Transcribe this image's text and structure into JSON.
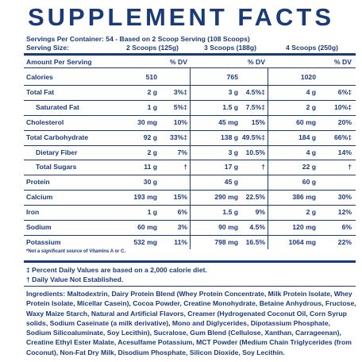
{
  "title": "SUPPLEMENT FACTS",
  "servings_per_container": "Servings Per Container: 54 - Based on 2 Scoop Serving (108 Scoops)",
  "serving_size": {
    "label": "Serving Size:",
    "columns": [
      "2 Scoops (125g)",
      "3 Scoops (188g)",
      "4 Scoops (250g)"
    ]
  },
  "header": {
    "label": "Amount Per Serving",
    "dv": "% DV"
  },
  "rows": [
    {
      "name": "Calories",
      "cols": [
        {
          "amount": "510"
        },
        {
          "amount": "765"
        },
        {
          "amount": "1020"
        }
      ]
    },
    {
      "name": "Total Fat",
      "cols": [
        {
          "amount": "2 g",
          "dv": "3%‡"
        },
        {
          "amount": "3 g",
          "dv": "4.5%‡"
        },
        {
          "amount": "4 g",
          "dv": "6%‡"
        }
      ]
    },
    {
      "name": "Saturated Fat",
      "cols": [
        {
          "amount": "1 g",
          "dv": "5%‡"
        },
        {
          "amount": "1.5 g",
          "dv": "7.5%‡"
        },
        {
          "amount": "2 g",
          "dv": "10%‡"
        }
      ]
    },
    {
      "name": "Cholesterol",
      "cols": [
        {
          "amount": "30 mg",
          "dv": "10%"
        },
        {
          "amount": "45 mg",
          "dv": "15%"
        },
        {
          "amount": "60 mg",
          "dv": "20%"
        }
      ]
    },
    {
      "name": "Total Carbohydrate",
      "cols": [
        {
          "amount": "92 g",
          "dv": "33%‡"
        },
        {
          "amount": "138 g",
          "dv": "49.5%‡"
        },
        {
          "amount": "184 g",
          "dv": "66%‡"
        }
      ]
    },
    {
      "name": "Dietary Fiber",
      "cols": [
        {
          "amount": "2 g",
          "dv": "7%"
        },
        {
          "amount": "3 g",
          "dv": "10.5%"
        },
        {
          "amount": "4 g",
          "dv": "14%"
        }
      ]
    },
    {
      "name": "Total Sugars",
      "cols": [
        {
          "amount": "11 g",
          "dv": "†"
        },
        {
          "amount": "17 g",
          "dv": "†"
        },
        {
          "amount": "22 g",
          "dv": "†"
        }
      ]
    },
    {
      "name": "Protein",
      "cols": [
        {
          "amount": "30 g"
        },
        {
          "amount": "45 g"
        },
        {
          "amount": "60 g"
        }
      ]
    },
    {
      "name": "Calcium",
      "cols": [
        {
          "amount": "193 mg",
          "dv": "15%"
        },
        {
          "amount": "290 mg",
          "dv": "22.5%"
        },
        {
          "amount": "386 mg",
          "dv": "30%"
        }
      ]
    },
    {
      "name": "Iron",
      "cols": [
        {
          "amount": "1 g",
          "dv": "6%"
        },
        {
          "amount": "1.5 g",
          "dv": "9%"
        },
        {
          "amount": "2 g",
          "dv": "12%"
        }
      ]
    },
    {
      "name": "Sodium",
      "cols": [
        {
          "amount": "60 mg",
          "dv": "3%"
        },
        {
          "amount": "90 mg",
          "dv": "4.5%"
        },
        {
          "amount": "120 mg",
          "dv": "6%"
        }
      ]
    },
    {
      "name": "Potassium",
      "cols": [
        {
          "amount": "532 mg",
          "dv": "11%"
        },
        {
          "amount": "798 mg",
          "dv": "16.5%"
        },
        {
          "amount": "1064 mg",
          "dv": "22%"
        }
      ]
    }
  ],
  "note": "*Not a significant source of Vitamins A or C.",
  "footnotes": [
    "‡ Percent Daily Values are based on a 2,000 calorie diet.",
    "† Daily Value Not Established."
  ],
  "ingredients": {
    "label": "Ingredients:",
    "text": "Maltodextrin, Dairy Protein Blend (Whey Protein Concentrate, Milk Protein Isolate, Whey Protein Isolate, Micellar Casein), Cocoa Powder, Creatine Monohydrate, Betaine Anhydrous, Fructose, Waxy Maize Starch, Natural and Artificial Flavors, Creamer (Hydrogenated Coconut Oil, Corn Syrup solids, Sodium Caseinate (a milk derivative), Mono and Diglycerides, Dipotassium Phosphate, Sodium Silicoaluminate, Soy Lecithin), Sucralose, Gum Blend (Cellulose, Xanthan, Carrageenan), Creatine Ethyl Ester Malate, Acesulfame Potassium, MCT Powder (Medium Chain Triglycerides (from Coconut), Non-Fat Dry Milk, Disodium Phosphate, Silicon Dioxide, Soy Lecithin."
  }
}
